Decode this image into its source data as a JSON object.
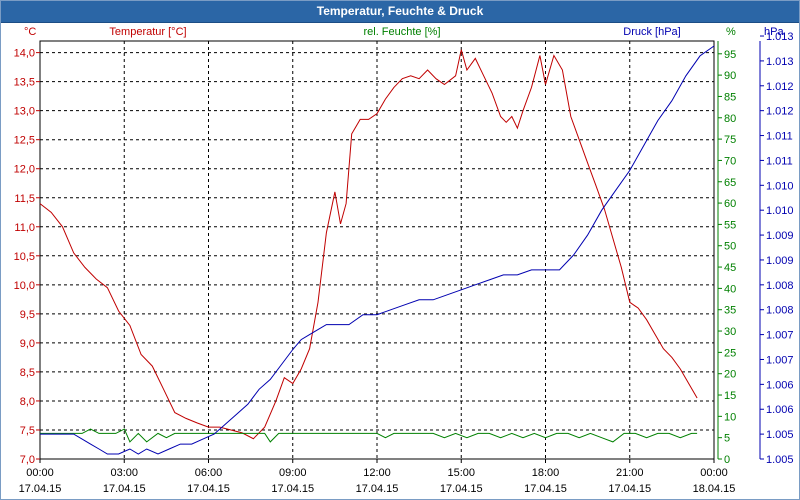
{
  "window": {
    "title": "Temperatur, Feuchte & Druck"
  },
  "colors": {
    "temperature": "#c00000",
    "humidity": "#008000",
    "pressure": "#0000b0",
    "grid": "#000000",
    "titlebar": "#2b66a6"
  },
  "chart_data": {
    "type": "line",
    "title": "Temperatur, Feuchte & Druck",
    "xlabel": "",
    "x_ticks": [
      {
        "time": "00:00",
        "date": "17.04.15"
      },
      {
        "time": "03:00",
        "date": "17.04.15"
      },
      {
        "time": "06:00",
        "date": "17.04.15"
      },
      {
        "time": "09:00",
        "date": "17.04.15"
      },
      {
        "time": "12:00",
        "date": "17.04.15"
      },
      {
        "time": "15:00",
        "date": "17.04.15"
      },
      {
        "time": "18:00",
        "date": "17.04.15"
      },
      {
        "time": "21:00",
        "date": "17.04.15"
      },
      {
        "time": "00:00",
        "date": "18.04.15"
      }
    ],
    "x_range_hours": [
      0,
      24
    ],
    "axes": {
      "temperature": {
        "label": "Temperatur [°C]",
        "unit": "°C",
        "range": [
          7.0,
          14.2
        ],
        "ticks": [
          "7,0",
          "7,5",
          "8,0",
          "8,5",
          "9,0",
          "9,5",
          "10,0",
          "10,5",
          "11,0",
          "11,5",
          "12,0",
          "12,5",
          "13,0",
          "13,5",
          "14,0"
        ]
      },
      "humidity": {
        "label": "rel. Feuchte [%]",
        "unit": "%",
        "range": [
          0,
          98
        ],
        "ticks": [
          "0",
          "5",
          "10",
          "15",
          "20",
          "25",
          "30",
          "35",
          "40",
          "45",
          "50",
          "55",
          "60",
          "65",
          "70",
          "75",
          "80",
          "85",
          "90",
          "95"
        ]
      },
      "pressure": {
        "label": "Druck [hPa]",
        "unit": "hPa",
        "range": [
          1.005,
          1.0134
        ],
        "ticks": [
          "1.005",
          "1.005",
          "1.006",
          "1.006",
          "1.007",
          "1.007",
          "1.008",
          "1.008",
          "1.009",
          "1.009",
          "1.010",
          "1.010",
          "1.011",
          "1.011",
          "1.012",
          "1.012",
          "1.013",
          "1.013"
        ]
      }
    },
    "series": [
      {
        "name": "Temperatur",
        "axis": "temperature",
        "color": "#c00000",
        "points": [
          [
            0,
            11.4
          ],
          [
            0.4,
            11.25
          ],
          [
            0.8,
            11.0
          ],
          [
            1.2,
            10.55
          ],
          [
            1.6,
            10.3
          ],
          [
            2.0,
            10.1
          ],
          [
            2.4,
            9.95
          ],
          [
            2.8,
            9.55
          ],
          [
            3.2,
            9.3
          ],
          [
            3.6,
            8.8
          ],
          [
            4.0,
            8.6
          ],
          [
            4.4,
            8.2
          ],
          [
            4.8,
            7.8
          ],
          [
            5.2,
            7.7
          ],
          [
            5.6,
            7.62
          ],
          [
            6.0,
            7.55
          ],
          [
            6.4,
            7.55
          ],
          [
            6.8,
            7.5
          ],
          [
            7.2,
            7.45
          ],
          [
            7.6,
            7.35
          ],
          [
            8.0,
            7.55
          ],
          [
            8.4,
            8.0
          ],
          [
            8.7,
            8.4
          ],
          [
            9.0,
            8.3
          ],
          [
            9.3,
            8.55
          ],
          [
            9.6,
            8.9
          ],
          [
            9.9,
            9.7
          ],
          [
            10.2,
            10.9
          ],
          [
            10.5,
            11.6
          ],
          [
            10.7,
            11.05
          ],
          [
            10.9,
            11.4
          ],
          [
            11.1,
            12.6
          ],
          [
            11.4,
            12.85
          ],
          [
            11.7,
            12.85
          ],
          [
            12.0,
            12.95
          ],
          [
            12.3,
            13.2
          ],
          [
            12.6,
            13.4
          ],
          [
            12.9,
            13.55
          ],
          [
            13.2,
            13.6
          ],
          [
            13.5,
            13.55
          ],
          [
            13.8,
            13.7
          ],
          [
            14.1,
            13.55
          ],
          [
            14.4,
            13.45
          ],
          [
            14.8,
            13.6
          ],
          [
            15.0,
            14.05
          ],
          [
            15.2,
            13.7
          ],
          [
            15.5,
            13.9
          ],
          [
            15.8,
            13.6
          ],
          [
            16.1,
            13.3
          ],
          [
            16.4,
            12.9
          ],
          [
            16.6,
            12.8
          ],
          [
            16.8,
            12.9
          ],
          [
            17.0,
            12.7
          ],
          [
            17.2,
            13.0
          ],
          [
            17.5,
            13.4
          ],
          [
            17.8,
            13.95
          ],
          [
            18.0,
            13.45
          ],
          [
            18.3,
            13.95
          ],
          [
            18.6,
            13.7
          ],
          [
            18.9,
            12.9
          ],
          [
            19.2,
            12.5
          ],
          [
            19.5,
            12.1
          ],
          [
            19.8,
            11.7
          ],
          [
            20.1,
            11.3
          ],
          [
            20.4,
            10.8
          ],
          [
            20.7,
            10.3
          ],
          [
            21.0,
            9.7
          ],
          [
            21.3,
            9.6
          ],
          [
            21.6,
            9.4
          ],
          [
            21.9,
            9.15
          ],
          [
            22.2,
            8.9
          ],
          [
            22.5,
            8.75
          ],
          [
            22.8,
            8.55
          ],
          [
            23.1,
            8.3
          ],
          [
            23.4,
            8.05
          ]
        ]
      },
      {
        "name": "rel. Feuchte",
        "axis": "humidity",
        "color": "#008000",
        "points": [
          [
            0,
            6
          ],
          [
            0.5,
            6
          ],
          [
            1.0,
            6
          ],
          [
            1.5,
            6
          ],
          [
            1.8,
            7
          ],
          [
            2.1,
            6
          ],
          [
            2.4,
            6
          ],
          [
            2.7,
            6
          ],
          [
            3.0,
            7
          ],
          [
            3.2,
            4
          ],
          [
            3.5,
            6
          ],
          [
            3.8,
            4
          ],
          [
            4.2,
            6
          ],
          [
            4.5,
            5
          ],
          [
            4.8,
            6
          ],
          [
            5.2,
            6
          ],
          [
            5.6,
            6
          ],
          [
            6.0,
            6
          ],
          [
            6.5,
            6
          ],
          [
            7.0,
            6
          ],
          [
            7.5,
            6
          ],
          [
            8.0,
            6
          ],
          [
            8.2,
            4
          ],
          [
            8.5,
            6
          ],
          [
            9.0,
            6
          ],
          [
            9.5,
            6
          ],
          [
            10.0,
            6
          ],
          [
            10.5,
            6
          ],
          [
            11.0,
            6
          ],
          [
            11.5,
            6
          ],
          [
            12.0,
            6
          ],
          [
            12.3,
            5
          ],
          [
            12.6,
            6
          ],
          [
            13.0,
            6
          ],
          [
            13.5,
            6
          ],
          [
            14.0,
            6
          ],
          [
            14.4,
            5
          ],
          [
            14.8,
            6
          ],
          [
            15.2,
            5
          ],
          [
            15.6,
            6
          ],
          [
            16.0,
            6
          ],
          [
            16.4,
            5
          ],
          [
            16.8,
            6
          ],
          [
            17.2,
            5
          ],
          [
            17.6,
            6
          ],
          [
            18.0,
            5
          ],
          [
            18.4,
            6
          ],
          [
            18.8,
            6
          ],
          [
            19.2,
            5
          ],
          [
            19.6,
            6
          ],
          [
            20.0,
            5
          ],
          [
            20.4,
            4
          ],
          [
            20.8,
            6
          ],
          [
            21.2,
            6
          ],
          [
            21.6,
            5
          ],
          [
            22.0,
            6
          ],
          [
            22.4,
            6
          ],
          [
            22.8,
            5
          ],
          [
            23.2,
            6
          ],
          [
            23.4,
            6
          ]
        ]
      },
      {
        "name": "Druck",
        "axis": "pressure",
        "color": "#0000b0",
        "points": [
          [
            0,
            1.0055
          ],
          [
            0.4,
            1.0055
          ],
          [
            0.8,
            1.0055
          ],
          [
            1.2,
            1.0055
          ],
          [
            1.5,
            1.0054
          ],
          [
            1.8,
            1.0053
          ],
          [
            2.1,
            1.0052
          ],
          [
            2.4,
            1.0051
          ],
          [
            2.8,
            1.0051
          ],
          [
            3.2,
            1.0052
          ],
          [
            3.5,
            1.0051
          ],
          [
            3.8,
            1.0052
          ],
          [
            4.2,
            1.0051
          ],
          [
            4.6,
            1.0052
          ],
          [
            5.0,
            1.0053
          ],
          [
            5.4,
            1.0053
          ],
          [
            5.8,
            1.0054
          ],
          [
            6.2,
            1.0055
          ],
          [
            6.6,
            1.0057
          ],
          [
            7.0,
            1.0059
          ],
          [
            7.4,
            1.0061
          ],
          [
            7.8,
            1.0064
          ],
          [
            8.2,
            1.0066
          ],
          [
            8.6,
            1.0069
          ],
          [
            9.0,
            1.0072
          ],
          [
            9.3,
            1.0074
          ],
          [
            9.6,
            1.0075
          ],
          [
            9.9,
            1.0076
          ],
          [
            10.2,
            1.0077
          ],
          [
            10.5,
            1.0077
          ],
          [
            11.0,
            1.0077
          ],
          [
            11.5,
            1.0079
          ],
          [
            12.0,
            1.0079
          ],
          [
            12.5,
            1.008
          ],
          [
            13.0,
            1.0081
          ],
          [
            13.5,
            1.0082
          ],
          [
            14.0,
            1.0082
          ],
          [
            14.5,
            1.0083
          ],
          [
            15.0,
            1.0084
          ],
          [
            15.5,
            1.0085
          ],
          [
            16.0,
            1.0086
          ],
          [
            16.5,
            1.0087
          ],
          [
            17.0,
            1.0087
          ],
          [
            17.5,
            1.0088
          ],
          [
            18.0,
            1.0088
          ],
          [
            18.5,
            1.0088
          ],
          [
            19.0,
            1.0091
          ],
          [
            19.5,
            1.0095
          ],
          [
            20.0,
            1.01
          ],
          [
            20.5,
            1.0104
          ],
          [
            21.0,
            1.0108
          ],
          [
            21.5,
            1.0113
          ],
          [
            22.0,
            1.0118
          ],
          [
            22.5,
            1.0122
          ],
          [
            23.0,
            1.0127
          ],
          [
            23.5,
            1.0131
          ],
          [
            24.0,
            1.0133
          ]
        ]
      }
    ],
    "grid": true
  }
}
